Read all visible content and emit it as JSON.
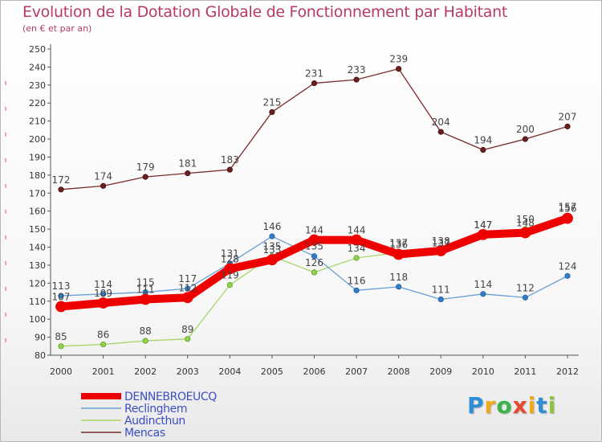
{
  "title": "Evolution de la Dotation Globale de Fonctionnement par Habitant",
  "subtitle": "(en € et par an)",
  "logo": {
    "letters": [
      "P",
      "r",
      "o",
      "x",
      "i",
      "t",
      "i"
    ],
    "colors": [
      "#2e8fd6",
      "#f2a81d",
      "#3ab34a",
      "#e54a2f",
      "#f2a81d",
      "#2e8fd6",
      "#8cc63f"
    ]
  },
  "chart_data": {
    "type": "line",
    "title": "Evolution de la Dotation Globale de Fonctionnement par Habitant",
    "subtitle": "(en € et par an)",
    "xlabel": "",
    "ylabel": "",
    "ylim": [
      80,
      250
    ],
    "yticks": [
      80,
      90,
      100,
      110,
      120,
      130,
      140,
      150,
      160,
      170,
      180,
      190,
      200,
      210,
      220,
      230,
      240,
      250
    ],
    "grid": false,
    "legend_position": "bottom-left",
    "categories": [
      "2000",
      "2001",
      "2002",
      "2003",
      "2004",
      "2005",
      "2006",
      "2007",
      "2008",
      "2009",
      "2010",
      "2011",
      "2012"
    ],
    "series": [
      {
        "name": "DENNEBROEUCQ",
        "color": "#ee0000",
        "values": [
          107,
          109,
          111,
          112,
          128,
          133,
          144,
          144,
          136,
          138,
          147,
          148,
          156
        ],
        "labels": [
          "107",
          "109",
          "111",
          "112",
          "128",
          "133",
          "144",
          "144",
          "136",
          "138",
          "147",
          "148",
          "156"
        ]
      },
      {
        "name": "Reclinghem",
        "color": "#6a9fd4",
        "values": [
          113,
          114,
          115,
          117,
          131,
          146,
          135,
          116,
          118,
          111,
          114,
          112,
          124
        ],
        "labels": [
          "113",
          "114",
          "115",
          "117",
          "131",
          "146",
          "135",
          "116",
          "118",
          "111",
          "114",
          "112",
          "124"
        ]
      },
      {
        "name": "Audincthun",
        "color": "#a8d66a",
        "values": [
          85,
          86,
          88,
          89,
          119,
          135,
          126,
          134,
          137,
          137,
          147,
          150,
          157
        ],
        "labels": [
          "85",
          "86",
          "88",
          "89",
          "119",
          "135",
          "126",
          "134",
          "137",
          "137",
          "147",
          "150",
          "157"
        ]
      },
      {
        "name": "Mencas",
        "color": "#7a2c2c",
        "values": [
          172,
          174,
          179,
          181,
          183,
          215,
          231,
          233,
          239,
          204,
          194,
          200,
          207
        ],
        "labels": [
          "172",
          "174",
          "179",
          "181",
          "183",
          "215",
          "231",
          "233",
          "239",
          "204",
          "194",
          "200",
          "207"
        ]
      }
    ]
  }
}
